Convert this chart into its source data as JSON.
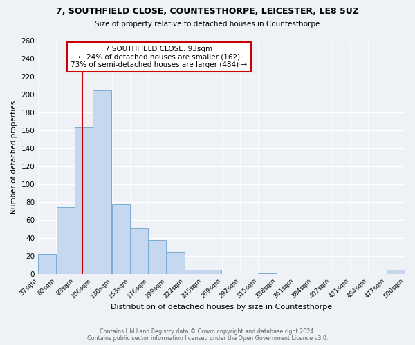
{
  "title1": "7, SOUTHFIELD CLOSE, COUNTESTHORPE, LEICESTER, LE8 5UZ",
  "title2": "Size of property relative to detached houses in Countesthorpe",
  "xlabel": "Distribution of detached houses by size in Countesthorpe",
  "ylabel": "Number of detached properties",
  "bar_color": "#c5d8f0",
  "bar_edge_color": "#7aadd4",
  "bins": [
    37,
    60,
    83,
    106,
    130,
    153,
    176,
    199,
    222,
    245,
    269,
    292,
    315,
    338,
    361,
    384,
    407,
    431,
    454,
    477,
    500
  ],
  "counts": [
    23,
    75,
    164,
    205,
    78,
    51,
    38,
    25,
    5,
    5,
    0,
    0,
    1,
    0,
    0,
    0,
    0,
    0,
    0,
    5
  ],
  "tick_labels": [
    "37sqm",
    "60sqm",
    "83sqm",
    "106sqm",
    "130sqm",
    "153sqm",
    "176sqm",
    "199sqm",
    "222sqm",
    "245sqm",
    "269sqm",
    "292sqm",
    "315sqm",
    "338sqm",
    "361sqm",
    "384sqm",
    "407sqm",
    "431sqm",
    "454sqm",
    "477sqm",
    "500sqm"
  ],
  "property_size": 93,
  "vline_color": "#cc0000",
  "annotation_box_color": "#ffffff",
  "annotation_box_edge": "#cc0000",
  "annotation_line1": "7 SOUTHFIELD CLOSE: 93sqm",
  "annotation_line2": "← 24% of detached houses are smaller (162)",
  "annotation_line3": "73% of semi-detached houses are larger (484) →",
  "ylim": [
    0,
    260
  ],
  "yticks": [
    0,
    20,
    40,
    60,
    80,
    100,
    120,
    140,
    160,
    180,
    200,
    220,
    240,
    260
  ],
  "footer1": "Contains HM Land Registry data © Crown copyright and database right 2024.",
  "footer2": "Contains public sector information licensed under the Open Government Licence v3.0.",
  "background_color": "#eef2f7"
}
